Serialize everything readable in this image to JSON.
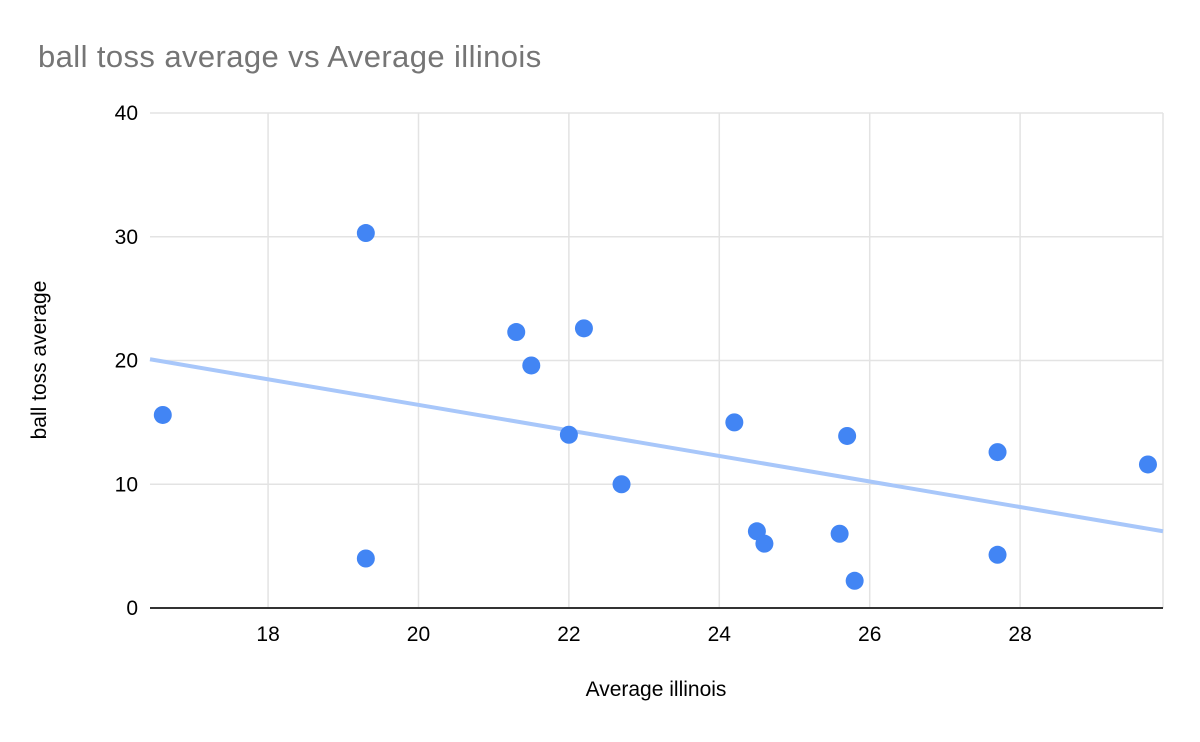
{
  "chart_data": {
    "type": "scatter",
    "title": "ball toss average vs Average illinois",
    "xlabel": "Average illinois",
    "ylabel": "ball toss average",
    "xlim": [
      16.43,
      29.9
    ],
    "ylim": [
      0,
      40
    ],
    "x_ticks": [
      18,
      20,
      22,
      24,
      26,
      28
    ],
    "y_ticks": [
      0,
      10,
      20,
      30,
      40
    ],
    "grid": true,
    "legend": false,
    "points": [
      {
        "x": 16.6,
        "y": 15.6
      },
      {
        "x": 19.3,
        "y": 30.3
      },
      {
        "x": 19.3,
        "y": 4.0
      },
      {
        "x": 21.3,
        "y": 22.3
      },
      {
        "x": 21.5,
        "y": 19.6
      },
      {
        "x": 22.0,
        "y": 14.0
      },
      {
        "x": 22.2,
        "y": 22.6
      },
      {
        "x": 22.7,
        "y": 10.0
      },
      {
        "x": 24.2,
        "y": 15.0
      },
      {
        "x": 24.5,
        "y": 6.2
      },
      {
        "x": 24.6,
        "y": 5.2
      },
      {
        "x": 25.6,
        "y": 6.0
      },
      {
        "x": 25.7,
        "y": 13.9
      },
      {
        "x": 25.8,
        "y": 2.2
      },
      {
        "x": 27.7,
        "y": 12.6
      },
      {
        "x": 27.7,
        "y": 4.3
      },
      {
        "x": 29.7,
        "y": 11.6
      }
    ],
    "trendline": {
      "x1": 16.43,
      "y1": 20.1,
      "x2": 29.9,
      "y2": 6.2
    },
    "colors": {
      "point": "#4285f4",
      "trendline": "#a8c7fa",
      "gridline": "#e3e3e3",
      "axis_line": "#333333",
      "title": "#757575",
      "tick_label": "#000000"
    }
  }
}
